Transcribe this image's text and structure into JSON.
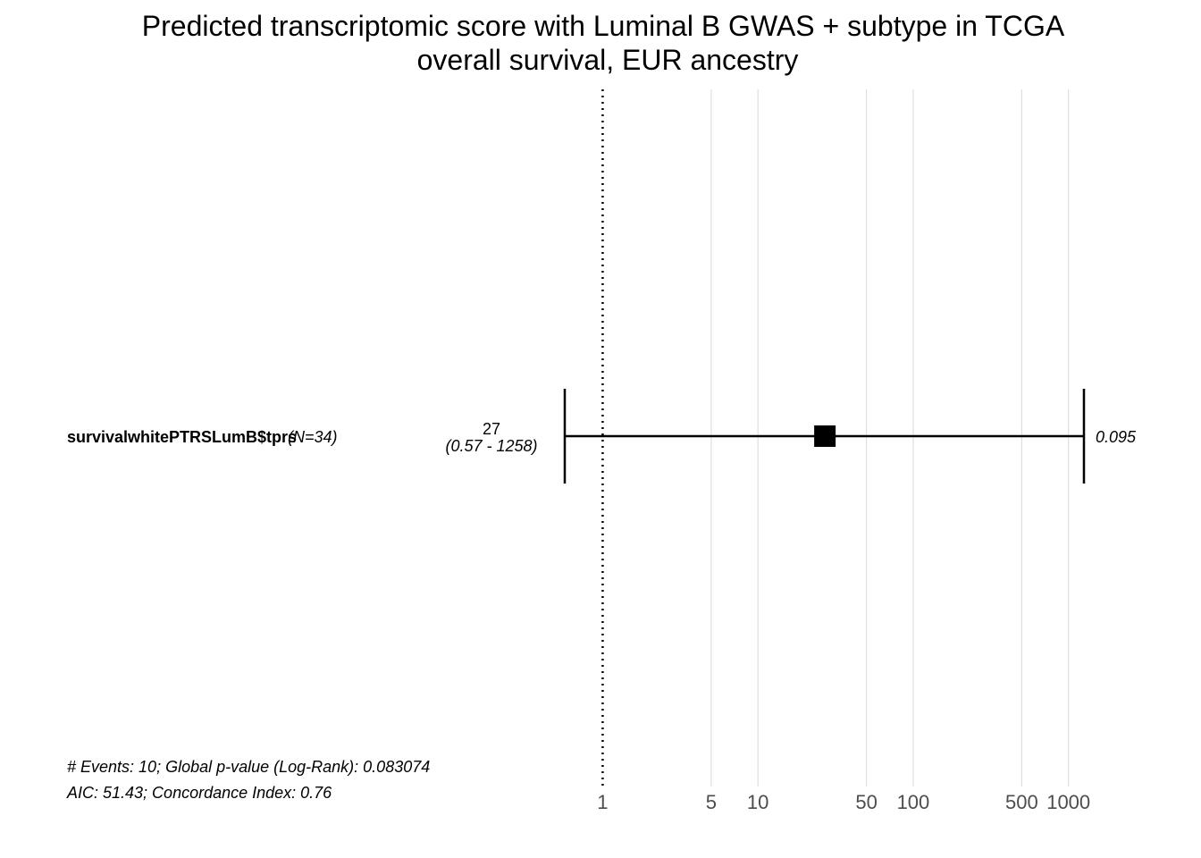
{
  "chart_data": {
    "type": "forest",
    "title": "Predicted transcriptomic score with Luminal B GWAS + subtype in TCGA overall survival, EUR ancestry",
    "title_lines": [
      "Predicted transcriptomic score with Luminal B GWAS + subtype in TCGA",
      "overall survival, EUR ancestry"
    ],
    "xscale": "log",
    "xlim": [
      0.57,
      1258
    ],
    "x_ticks": [
      1,
      5,
      10,
      50,
      100,
      500,
      1000
    ],
    "x_tick_labels": [
      "1",
      "5",
      "10",
      "50",
      "100",
      "500",
      "1000"
    ],
    "reference_line": 1,
    "grid": "vertical",
    "rows": [
      {
        "variable": "survivalwhitePTRSLumB$tprs",
        "n_label": "(N=34)",
        "hr": 27,
        "hr_label": "27",
        "ci_lower": 0.57,
        "ci_upper": 1258,
        "ci_label": "(0.57 - 1258)",
        "p_label": "0.095"
      }
    ],
    "footer_lines": [
      "# Events: 10; Global p-value (Log-Rank): 0.083074",
      "AIC: 51.43; Concordance Index: 0.76"
    ],
    "colors": {
      "marker": "#000000",
      "grid": "#d9d9d9",
      "tick_text": "#4d4d4d",
      "reference_line": "#000000"
    }
  }
}
